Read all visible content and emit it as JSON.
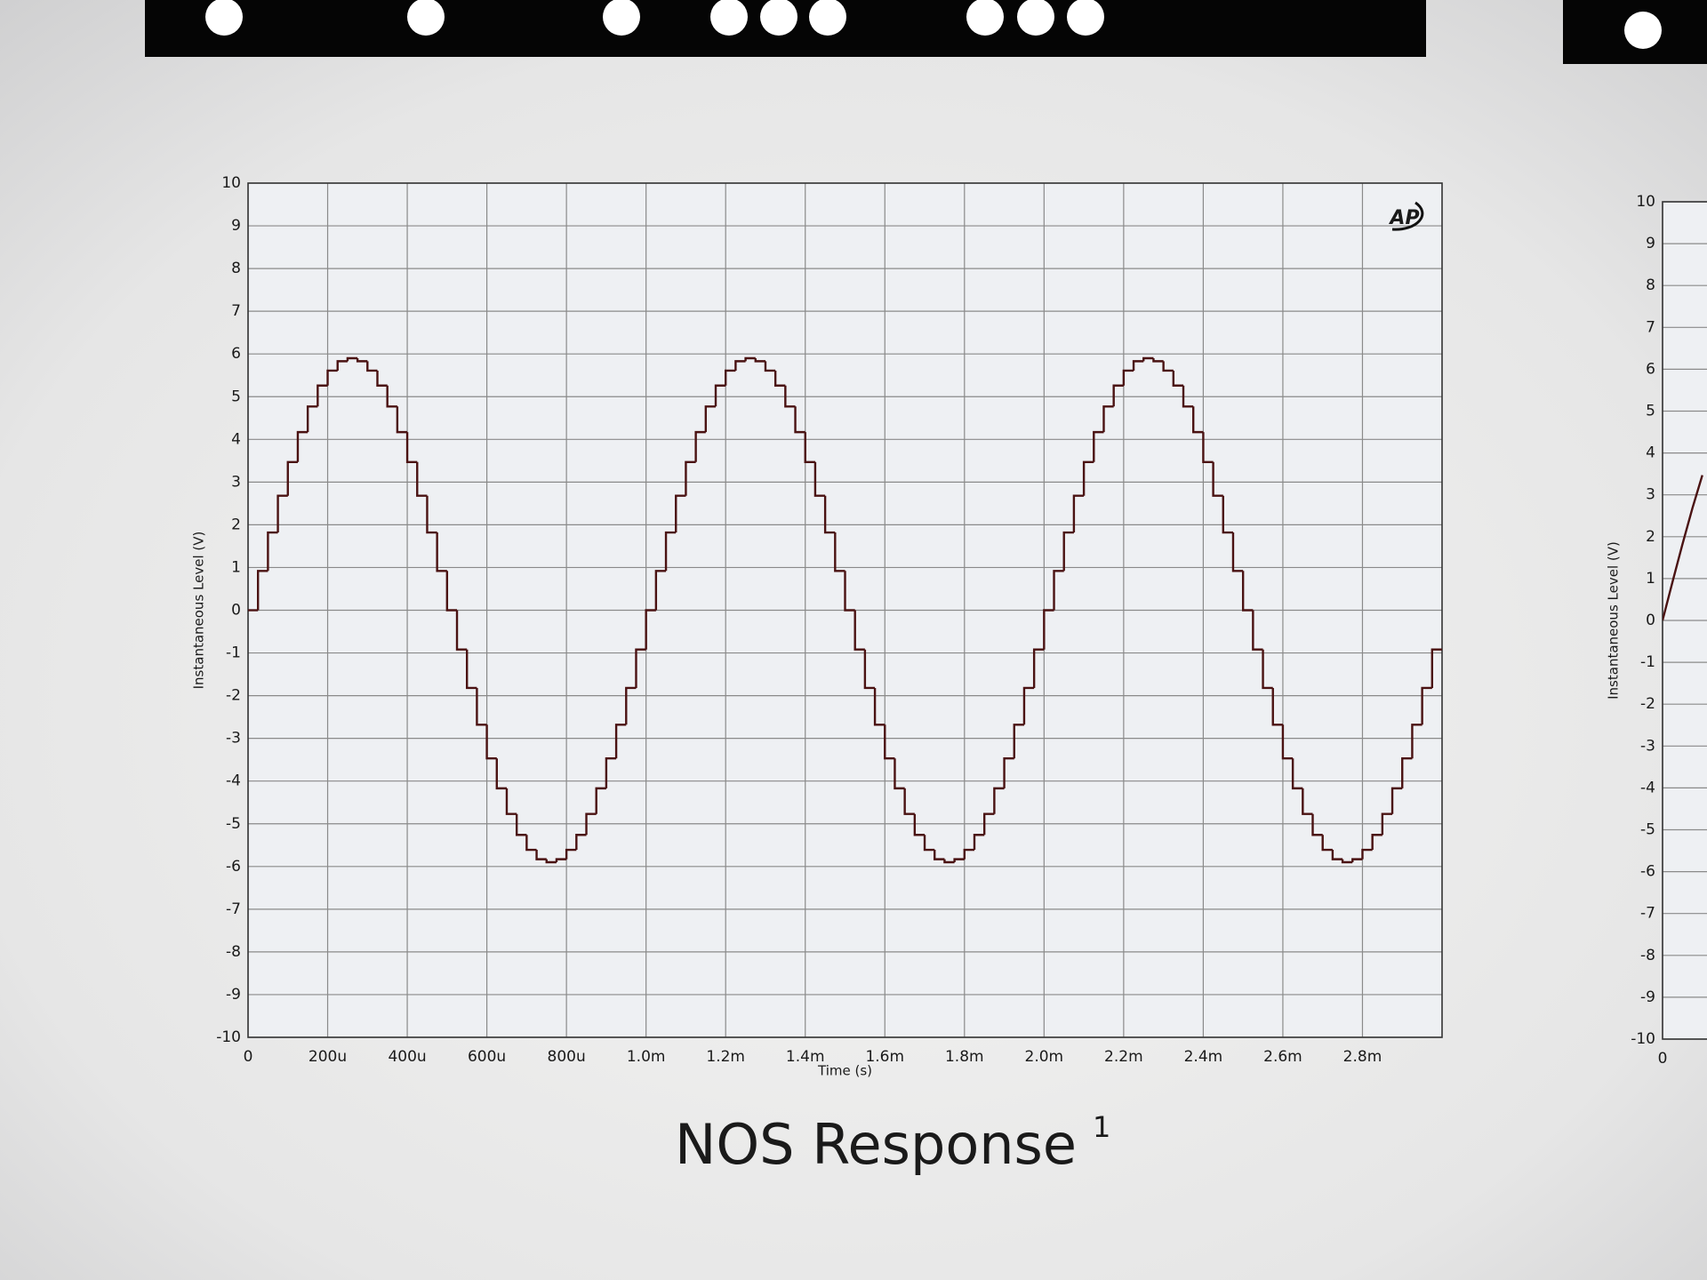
{
  "chart_data": [
    {
      "type": "line",
      "title": "NOS Response",
      "title_superscript": "1",
      "logo": "AP",
      "xlabel": "Time (s)",
      "ylabel": "Instantaneous Level (V)",
      "xlim": [
        0,
        0.003
      ],
      "ylim": [
        -10,
        10
      ],
      "xticks": [
        0,
        {
          "value": 0.0002,
          "label": "200u"
        },
        {
          "value": 0.0004,
          "label": "400u"
        },
        {
          "value": 0.0006,
          "label": "600u"
        },
        {
          "value": 0.0008,
          "label": "800u"
        },
        {
          "value": 0.001,
          "label": "1.0m"
        },
        {
          "value": 0.0012,
          "label": "1.2m"
        },
        {
          "value": 0.0014,
          "label": "1.4m"
        },
        {
          "value": 0.0016,
          "label": "1.6m"
        },
        {
          "value": 0.0018,
          "label": "1.8m"
        },
        {
          "value": 0.002,
          "label": "2.0m"
        },
        {
          "value": 0.0022,
          "label": "2.2m"
        },
        {
          "value": 0.0024,
          "label": "2.4m"
        },
        {
          "value": 0.0026,
          "label": "2.6m"
        },
        {
          "value": 0.0028,
          "label": "2.8m"
        }
      ],
      "yticks": [
        -10,
        -9,
        -8,
        -7,
        -6,
        -5,
        -4,
        -3,
        -2,
        -1,
        0,
        1,
        2,
        3,
        4,
        5,
        6,
        7,
        8,
        9,
        10
      ],
      "grid": true,
      "step": true,
      "color": "#4a1212",
      "x": [
        0,
        2.5e-05,
        5e-05,
        7.5e-05,
        0.0001,
        0.000125,
        0.00015,
        0.000175,
        0.0002,
        0.000225,
        0.00025,
        0.000275,
        0.0003,
        0.000325,
        0.00035,
        0.000375,
        0.0004,
        0.000425,
        0.00045,
        0.000475,
        0.0005,
        0.000525,
        0.00055,
        0.000575,
        0.0006,
        0.000625,
        0.00065,
        0.000675,
        0.0007,
        0.000725,
        0.00075,
        0.000775,
        0.0008,
        0.000825,
        0.00085,
        0.000875,
        0.0009,
        0.000925,
        0.00095,
        0.000975,
        0.001,
        0.001025,
        0.00105,
        0.001075,
        0.0011,
        0.001125,
        0.00115,
        0.001175,
        0.0012,
        0.001225,
        0.00125,
        0.001275,
        0.0013,
        0.001325,
        0.00135,
        0.001375,
        0.0014,
        0.001425,
        0.00145,
        0.001475,
        0.0015,
        0.001525,
        0.00155,
        0.001575,
        0.0016,
        0.001625,
        0.00165,
        0.001675,
        0.0017,
        0.001725,
        0.00175,
        0.001775,
        0.0018,
        0.001825,
        0.00185,
        0.001875,
        0.0019,
        0.001925,
        0.00195,
        0.001975,
        0.002,
        0.002025,
        0.00205,
        0.002075,
        0.0021,
        0.002125,
        0.00215,
        0.002175,
        0.0022,
        0.002225,
        0.00225,
        0.002275,
        0.0023,
        0.002325,
        0.00235,
        0.002375,
        0.0024,
        0.002425,
        0.00245,
        0.002475,
        0.0025,
        0.002525,
        0.00255,
        0.002575,
        0.0026,
        0.002625,
        0.00265,
        0.002675,
        0.0027,
        0.002725,
        0.00275,
        0.002775,
        0.0028,
        0.002825,
        0.00285,
        0.002875,
        0.0029,
        0.002925,
        0.00295,
        0.002975
      ],
      "values": [
        0,
        0.92,
        1.82,
        2.68,
        3.47,
        4.17,
        4.77,
        5.26,
        5.61,
        5.83,
        5.9,
        5.83,
        5.61,
        5.26,
        4.77,
        4.17,
        3.47,
        2.68,
        1.82,
        0.92,
        0,
        -0.92,
        -1.82,
        -2.68,
        -3.47,
        -4.17,
        -4.77,
        -5.26,
        -5.61,
        -5.83,
        -5.9,
        -5.83,
        -5.61,
        -5.26,
        -4.77,
        -4.17,
        -3.47,
        -2.68,
        -1.82,
        -0.92,
        0,
        0.92,
        1.82,
        2.68,
        3.47,
        4.17,
        4.77,
        5.26,
        5.61,
        5.83,
        5.9,
        5.83,
        5.61,
        5.26,
        4.77,
        4.17,
        3.47,
        2.68,
        1.82,
        0.92,
        0,
        -0.92,
        -1.82,
        -2.68,
        -3.47,
        -4.17,
        -4.77,
        -5.26,
        -5.61,
        -5.83,
        -5.9,
        -5.83,
        -5.61,
        -5.26,
        -4.77,
        -4.17,
        -3.47,
        -2.68,
        -1.82,
        -0.92,
        0,
        0.92,
        1.82,
        2.68,
        3.47,
        4.17,
        4.77,
        5.26,
        5.61,
        5.83,
        5.9,
        5.83,
        5.61,
        5.26,
        4.77,
        4.17,
        3.47,
        2.68,
        1.82,
        0.92,
        0,
        -0.92,
        -1.82,
        -2.68,
        -3.47,
        -4.17,
        -4.77,
        -5.26,
        -5.61,
        -5.83,
        -5.9,
        -5.83,
        -5.61,
        -5.26,
        -4.77,
        -4.17,
        -3.47,
        -2.68,
        -1.82,
        -0.92
      ]
    },
    {
      "type": "line",
      "ylabel": "Instantaneous Level (V)",
      "xlim": [
        0,
        0.003
      ],
      "ylim": [
        -10,
        10
      ],
      "xticks": [
        0
      ],
      "yticks": [
        -10,
        -9,
        -8,
        -7,
        -6,
        -5,
        -4,
        -3,
        -2,
        -1,
        0,
        1,
        2,
        3,
        4,
        5,
        6,
        7,
        8,
        9,
        10
      ],
      "grid": true,
      "step": false,
      "color": "#4a1212",
      "x": [
        0,
        2.5e-05,
        5e-05,
        7.5e-05,
        0.0001
      ],
      "values": [
        0,
        0.92,
        1.82,
        2.68,
        3.47
      ]
    }
  ]
}
